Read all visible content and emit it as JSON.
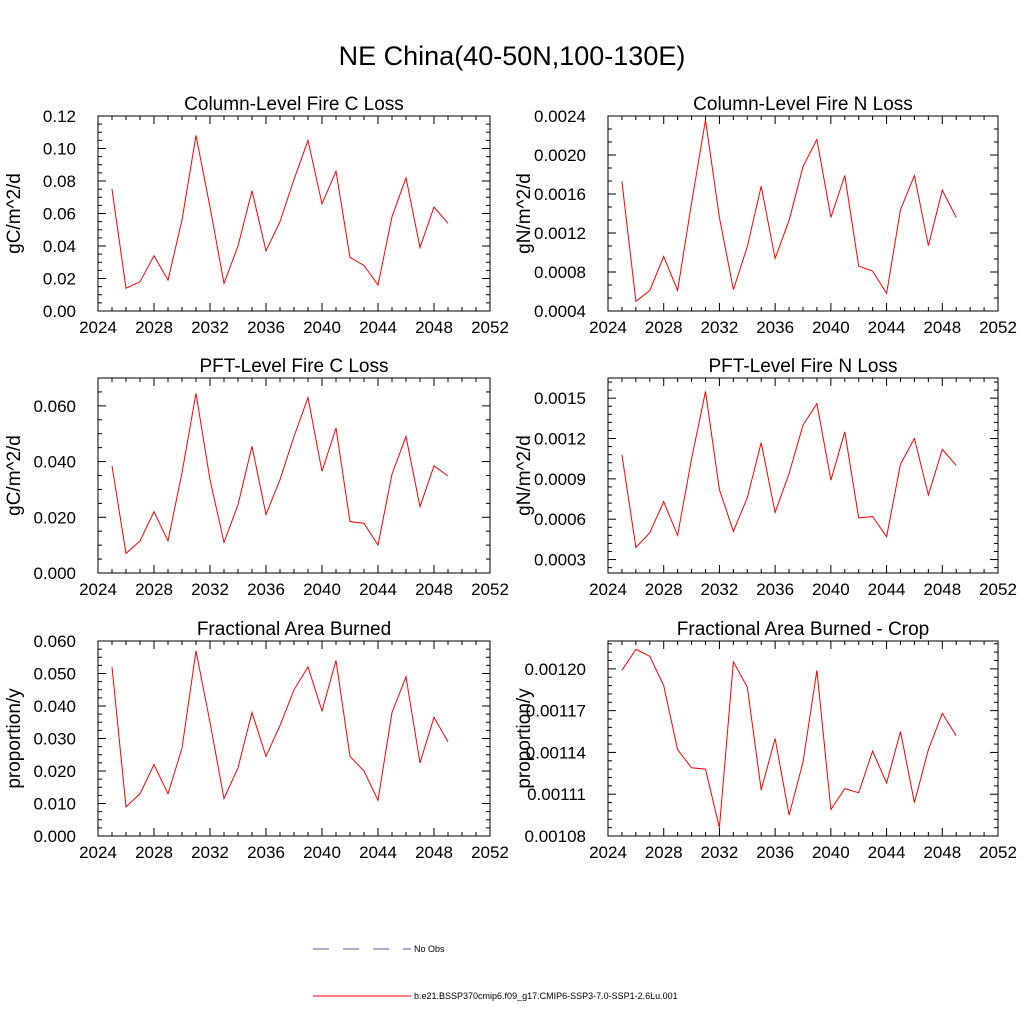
{
  "figure": {
    "title": "NE China(40-50N,100-130E)"
  },
  "colors": {
    "model_line": "#ff0000",
    "obs_line": "#5a5aaa",
    "axis": "#000000"
  },
  "legend": {
    "placement": "bottom-center",
    "entries": [
      {
        "label": "No Obs",
        "style": "dashed",
        "color": "#5a5aaa"
      },
      {
        "label": "b.e21.BSSP370cmip6.f09_g17.CMIP6-SSP3-7.0-SSP1-2.6Lu.001",
        "style": "solid",
        "color": "#ff0000"
      }
    ]
  },
  "chart_data": [
    {
      "type": "line",
      "title": "Column-Level Fire C Loss",
      "ylabel": "gC/m^2/d",
      "xlim": [
        2024,
        2052
      ],
      "ylim": [
        0,
        0.12
      ],
      "xticks": [
        "2024",
        "2028",
        "2032",
        "2036",
        "2040",
        "2044",
        "2048",
        "2052"
      ],
      "yticks": [
        0,
        0.02,
        0.04,
        0.06,
        0.08,
        0.1,
        0.12
      ],
      "yticklabels": [
        "0.00",
        "0.02",
        "0.04",
        "0.06",
        "0.08",
        "0.10",
        "0.12"
      ],
      "yminor": 4,
      "x": [
        2025,
        2026,
        2027,
        2028,
        2029,
        2030,
        2031,
        2032,
        2033,
        2034,
        2035,
        2036,
        2037,
        2038,
        2039,
        2040,
        2041,
        2042,
        2043,
        2044,
        2045,
        2046,
        2047,
        2048,
        2049
      ],
      "series": [
        {
          "values": [
            0.075,
            0.014,
            0.018,
            0.034,
            0.019,
            0.056,
            0.108,
            0.064,
            0.017,
            0.04,
            0.074,
            0.037,
            0.055,
            0.081,
            0.105,
            0.066,
            0.086,
            0.033,
            0.028,
            0.016,
            0.058,
            0.082,
            0.039,
            0.064,
            0.054
          ]
        }
      ]
    },
    {
      "type": "line",
      "title": "Column-Level Fire N Loss",
      "ylabel": "gN/m^2/d",
      "xlim": [
        2024,
        2052
      ],
      "ylim": [
        0.0004,
        0.0024
      ],
      "xticks": [
        "2024",
        "2028",
        "2032",
        "2036",
        "2040",
        "2044",
        "2048",
        "2052"
      ],
      "yticks": [
        0.0004,
        0.0008,
        0.0012,
        0.0016,
        0.002,
        0.0024
      ],
      "yticklabels": [
        "0.0004",
        "0.0008",
        "0.0012",
        "0.0016",
        "0.0020",
        "0.0024"
      ],
      "yminor": 3,
      "x": [
        2025,
        2026,
        2027,
        2028,
        2029,
        2030,
        2031,
        2032,
        2033,
        2034,
        2035,
        2036,
        2037,
        2038,
        2039,
        2040,
        2041,
        2042,
        2043,
        2044,
        2045,
        2046,
        2047,
        2048,
        2049
      ],
      "series": [
        {
          "values": [
            0.00173,
            0.0005,
            0.00061,
            0.00096,
            0.00061,
            0.00151,
            0.00236,
            0.00136,
            0.00062,
            0.00106,
            0.00168,
            0.00094,
            0.00133,
            0.00188,
            0.00216,
            0.00136,
            0.00179,
            0.00086,
            0.00081,
            0.00058,
            0.00144,
            0.00179,
            0.00107,
            0.00164,
            0.00136
          ]
        }
      ]
    },
    {
      "type": "line",
      "title": "PFT-Level Fire C Loss",
      "ylabel": "gC/m^2/d",
      "xlim": [
        2024,
        2052
      ],
      "ylim": [
        0,
        0.07
      ],
      "xticks": [
        "2024",
        "2028",
        "2032",
        "2036",
        "2040",
        "2044",
        "2048",
        "2052"
      ],
      "yticks": [
        0,
        0.02,
        0.04,
        0.06
      ],
      "yticklabels": [
        "0.000",
        "0.020",
        "0.040",
        "0.060"
      ],
      "yminor": 4,
      "x": [
        2025,
        2026,
        2027,
        2028,
        2029,
        2030,
        2031,
        2032,
        2033,
        2034,
        2035,
        2036,
        2037,
        2038,
        2039,
        2040,
        2041,
        2042,
        2043,
        2044,
        2045,
        2046,
        2047,
        2048,
        2049
      ],
      "series": [
        {
          "values": [
            0.0385,
            0.007,
            0.0115,
            0.022,
            0.0115,
            0.036,
            0.0645,
            0.0335,
            0.011,
            0.0245,
            0.0455,
            0.021,
            0.0335,
            0.049,
            0.063,
            0.0365,
            0.052,
            0.0185,
            0.0178,
            0.01,
            0.0355,
            0.049,
            0.0238,
            0.0385,
            0.0348
          ]
        }
      ]
    },
    {
      "type": "line",
      "title": "PFT-Level Fire N Loss",
      "ylabel": "gN/m^2/d",
      "xlim": [
        2024,
        2052
      ],
      "ylim": [
        0.0002,
        0.00165
      ],
      "xticks": [
        "2024",
        "2028",
        "2032",
        "2036",
        "2040",
        "2044",
        "2048",
        "2052"
      ],
      "yticks": [
        0.0003,
        0.0006,
        0.0009,
        0.0012,
        0.0015
      ],
      "yticklabels": [
        "0.0003",
        "0.0006",
        "0.0009",
        "0.0012",
        "0.0015"
      ],
      "yminor": 5,
      "x": [
        2025,
        2026,
        2027,
        2028,
        2029,
        2030,
        2031,
        2032,
        2033,
        2034,
        2035,
        2036,
        2037,
        2038,
        2039,
        2040,
        2041,
        2042,
        2043,
        2044,
        2045,
        2046,
        2047,
        2048,
        2049
      ],
      "series": [
        {
          "values": [
            0.00108,
            0.00039,
            0.0005,
            0.00073,
            0.00048,
            0.00105,
            0.00155,
            0.00082,
            0.00051,
            0.00076,
            0.00117,
            0.00065,
            0.00094,
            0.0013,
            0.00146,
            0.00089,
            0.00125,
            0.00061,
            0.00062,
            0.00047,
            0.00101,
            0.0012,
            0.00078,
            0.00112,
            0.001
          ]
        }
      ]
    },
    {
      "type": "line",
      "title": "Fractional Area Burned",
      "ylabel": "proportion/y",
      "xlim": [
        2024,
        2052
      ],
      "ylim": [
        0,
        0.06
      ],
      "xticks": [
        "2024",
        "2028",
        "2032",
        "2036",
        "2040",
        "2044",
        "2048",
        "2052"
      ],
      "yticks": [
        0,
        0.01,
        0.02,
        0.03,
        0.04,
        0.05,
        0.06
      ],
      "yticklabels": [
        "0.000",
        "0.010",
        "0.020",
        "0.030",
        "0.040",
        "0.050",
        "0.060"
      ],
      "yminor": 4,
      "x": [
        2025,
        2026,
        2027,
        2028,
        2029,
        2030,
        2031,
        2032,
        2033,
        2034,
        2035,
        2036,
        2037,
        2038,
        2039,
        2040,
        2041,
        2042,
        2043,
        2044,
        2045,
        2046,
        2047,
        2048,
        2049
      ],
      "series": [
        {
          "values": [
            0.052,
            0.009,
            0.013,
            0.022,
            0.013,
            0.027,
            0.057,
            0.035,
            0.0115,
            0.021,
            0.038,
            0.0245,
            0.034,
            0.045,
            0.052,
            0.0385,
            0.054,
            0.0245,
            0.02,
            0.011,
            0.038,
            0.049,
            0.0225,
            0.0365,
            0.029
          ]
        }
      ]
    },
    {
      "type": "line",
      "title": "Fractional Area Burned - Crop",
      "ylabel": "proportion/y",
      "xlim": [
        2024,
        2052
      ],
      "ylim": [
        0.00108,
        0.00122
      ],
      "xticks": [
        "2024",
        "2028",
        "2032",
        "2036",
        "2040",
        "2044",
        "2048",
        "2052"
      ],
      "yticks": [
        0.00108,
        0.00111,
        0.00114,
        0.00117,
        0.0012
      ],
      "yticklabels": [
        "0.00108",
        "0.00111",
        "0.00114",
        "0.00117",
        "0.00120"
      ],
      "yminor": 5,
      "x": [
        2025,
        2026,
        2027,
        2028,
        2029,
        2030,
        2031,
        2032,
        2033,
        2034,
        2035,
        2036,
        2037,
        2038,
        2039,
        2040,
        2041,
        2042,
        2043,
        2044,
        2045,
        2046,
        2047,
        2048,
        2049
      ],
      "series": [
        {
          "values": [
            0.001199,
            0.001214,
            0.001209,
            0.001188,
            0.001142,
            0.001129,
            0.001128,
            0.001086,
            0.001205,
            0.001187,
            0.001113,
            0.00115,
            0.001095,
            0.001133,
            0.001199,
            0.001099,
            0.001114,
            0.001111,
            0.001141,
            0.001118,
            0.001155,
            0.001104,
            0.001142,
            0.001168,
            0.001152
          ]
        }
      ]
    }
  ]
}
